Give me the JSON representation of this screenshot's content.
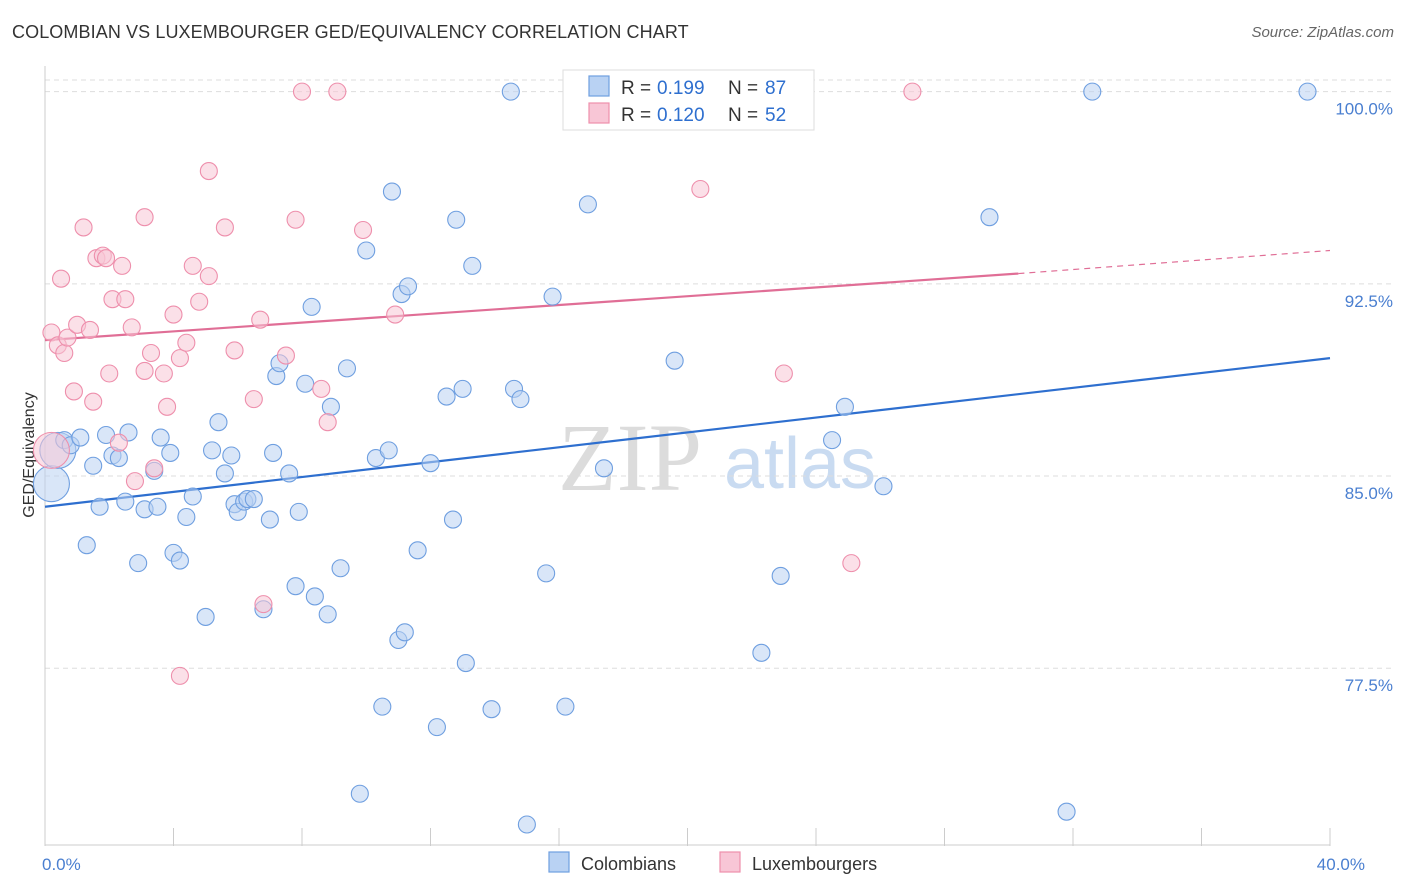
{
  "header": {
    "title": "COLOMBIAN VS LUXEMBOURGER GED/EQUIVALENCY CORRELATION CHART",
    "source": "Source: ZipAtlas.com"
  },
  "watermark": {
    "zip": "ZIP",
    "atlas": "atlas"
  },
  "chart_data": {
    "type": "scatter",
    "title": "COLOMBIAN VS LUXEMBOURGER GED/EQUIVALENCY CORRELATION CHART",
    "xlabel": "",
    "ylabel": "GED/Equivalency",
    "xlim": [
      0,
      40
    ],
    "ylim": [
      70.6,
      101.0
    ],
    "x_tick_labels": [
      {
        "value": 0,
        "label": "0.0%"
      },
      {
        "value": 40,
        "label": "40.0%"
      }
    ],
    "y_ticks": [
      {
        "value": 100.0,
        "label": "100.0%"
      },
      {
        "value": 92.5,
        "label": "92.5%"
      },
      {
        "value": 85.0,
        "label": "85.0%"
      },
      {
        "value": 77.5,
        "label": "77.5%"
      }
    ],
    "grid": "horizontal dashed",
    "legend": {
      "placement": "top-center",
      "entries": [
        {
          "series": "Colombians",
          "r_label": "R =",
          "r_value": "0.199",
          "n_label": "N =",
          "n_value": "87"
        },
        {
          "series": "Luxembourgers",
          "r_label": "R =",
          "r_value": "0.120",
          "n_label": "N =",
          "n_value": "52"
        }
      ]
    },
    "series": [
      {
        "name": "Colombians",
        "color": "#6f9fe0",
        "fill": "#b9d2f3",
        "trend": {
          "x0": 0,
          "y0": 83.8,
          "x1": 40,
          "y1": 89.6,
          "color": "#2e6fcf"
        },
        "points": [
          {
            "x": 0.2,
            "y": 84.7,
            "big": true
          },
          {
            "x": 0.4,
            "y": 86.0,
            "big": true
          },
          {
            "x": 0.6,
            "y": 86.4
          },
          {
            "x": 0.8,
            "y": 86.2
          },
          {
            "x": 1.1,
            "y": 86.5
          },
          {
            "x": 1.3,
            "y": 82.3
          },
          {
            "x": 1.5,
            "y": 85.4
          },
          {
            "x": 1.7,
            "y": 83.8
          },
          {
            "x": 1.9,
            "y": 86.6
          },
          {
            "x": 2.1,
            "y": 85.8
          },
          {
            "x": 2.3,
            "y": 85.7
          },
          {
            "x": 2.5,
            "y": 84.0
          },
          {
            "x": 2.6,
            "y": 86.7
          },
          {
            "x": 2.9,
            "y": 81.6
          },
          {
            "x": 3.1,
            "y": 83.7
          },
          {
            "x": 3.4,
            "y": 85.2
          },
          {
            "x": 3.5,
            "y": 83.8
          },
          {
            "x": 3.6,
            "y": 86.5
          },
          {
            "x": 3.9,
            "y": 85.9
          },
          {
            "x": 4.0,
            "y": 82.0
          },
          {
            "x": 4.2,
            "y": 81.7
          },
          {
            "x": 4.4,
            "y": 83.4
          },
          {
            "x": 4.6,
            "y": 84.2
          },
          {
            "x": 5.0,
            "y": 79.5
          },
          {
            "x": 5.2,
            "y": 86.0
          },
          {
            "x": 5.4,
            "y": 87.1
          },
          {
            "x": 5.6,
            "y": 85.1
          },
          {
            "x": 5.8,
            "y": 85.8
          },
          {
            "x": 5.9,
            "y": 83.9
          },
          {
            "x": 6.0,
            "y": 83.6
          },
          {
            "x": 6.2,
            "y": 84.0
          },
          {
            "x": 6.3,
            "y": 84.1
          },
          {
            "x": 6.5,
            "y": 84.1
          },
          {
            "x": 6.8,
            "y": 79.8
          },
          {
            "x": 7.0,
            "y": 83.3
          },
          {
            "x": 7.1,
            "y": 85.9
          },
          {
            "x": 7.2,
            "y": 88.9
          },
          {
            "x": 7.3,
            "y": 89.4
          },
          {
            "x": 7.6,
            "y": 85.1
          },
          {
            "x": 7.8,
            "y": 80.7
          },
          {
            "x": 7.9,
            "y": 83.6
          },
          {
            "x": 8.1,
            "y": 88.6
          },
          {
            "x": 8.3,
            "y": 91.6
          },
          {
            "x": 8.4,
            "y": 80.3
          },
          {
            "x": 8.8,
            "y": 79.6
          },
          {
            "x": 8.9,
            "y": 87.7
          },
          {
            "x": 9.2,
            "y": 81.4
          },
          {
            "x": 9.4,
            "y": 89.2
          },
          {
            "x": 9.8,
            "y": 72.6
          },
          {
            "x": 10.0,
            "y": 93.8
          },
          {
            "x": 10.3,
            "y": 85.7
          },
          {
            "x": 10.5,
            "y": 76.0
          },
          {
            "x": 10.7,
            "y": 86.0
          },
          {
            "x": 10.8,
            "y": 96.1
          },
          {
            "x": 11.0,
            "y": 78.6
          },
          {
            "x": 11.1,
            "y": 92.1
          },
          {
            "x": 11.2,
            "y": 78.9
          },
          {
            "x": 11.3,
            "y": 92.4
          },
          {
            "x": 11.6,
            "y": 82.1
          },
          {
            "x": 12.0,
            "y": 85.5
          },
          {
            "x": 12.2,
            "y": 75.2
          },
          {
            "x": 12.5,
            "y": 88.1
          },
          {
            "x": 12.7,
            "y": 83.3
          },
          {
            "x": 12.8,
            "y": 95.0
          },
          {
            "x": 13.0,
            "y": 88.4
          },
          {
            "x": 13.1,
            "y": 77.7
          },
          {
            "x": 13.3,
            "y": 93.2
          },
          {
            "x": 13.9,
            "y": 75.9
          },
          {
            "x": 14.5,
            "y": 100.0
          },
          {
            "x": 14.6,
            "y": 88.4
          },
          {
            "x": 14.8,
            "y": 88.0
          },
          {
            "x": 15.0,
            "y": 71.4
          },
          {
            "x": 15.6,
            "y": 81.2
          },
          {
            "x": 15.8,
            "y": 92.0
          },
          {
            "x": 16.2,
            "y": 76.0
          },
          {
            "x": 16.9,
            "y": 95.6
          },
          {
            "x": 17.4,
            "y": 85.3
          },
          {
            "x": 19.6,
            "y": 89.5
          },
          {
            "x": 22.3,
            "y": 78.1
          },
          {
            "x": 22.9,
            "y": 81.1
          },
          {
            "x": 24.5,
            "y": 86.4
          },
          {
            "x": 24.9,
            "y": 87.7
          },
          {
            "x": 26.1,
            "y": 84.6
          },
          {
            "x": 29.4,
            "y": 95.1
          },
          {
            "x": 31.8,
            "y": 71.9
          },
          {
            "x": 32.6,
            "y": 100.0
          },
          {
            "x": 39.3,
            "y": 100.0
          }
        ]
      },
      {
        "name": "Luxembourgers",
        "color": "#ee8fac",
        "fill": "#f8c6d6",
        "trend": {
          "x0": 0,
          "y0": 90.3,
          "x1": 30.3,
          "y1": 92.9,
          "dash_x1": 40,
          "dash_y1": 93.8,
          "color": "#e06e96"
        },
        "points": [
          {
            "x": 0.2,
            "y": 86.0,
            "big": true
          },
          {
            "x": 0.2,
            "y": 90.6
          },
          {
            "x": 0.4,
            "y": 90.1
          },
          {
            "x": 0.5,
            "y": 92.7
          },
          {
            "x": 0.6,
            "y": 89.8
          },
          {
            "x": 0.7,
            "y": 90.4
          },
          {
            "x": 0.9,
            "y": 88.3
          },
          {
            "x": 1.0,
            "y": 90.9
          },
          {
            "x": 1.2,
            "y": 94.7
          },
          {
            "x": 1.4,
            "y": 90.7
          },
          {
            "x": 1.5,
            "y": 87.9
          },
          {
            "x": 1.6,
            "y": 93.5
          },
          {
            "x": 1.8,
            "y": 93.6
          },
          {
            "x": 1.9,
            "y": 93.5
          },
          {
            "x": 2.0,
            "y": 89.0
          },
          {
            "x": 2.1,
            "y": 91.9
          },
          {
            "x": 2.3,
            "y": 86.3
          },
          {
            "x": 2.4,
            "y": 93.2
          },
          {
            "x": 2.5,
            "y": 91.9
          },
          {
            "x": 2.7,
            "y": 90.8
          },
          {
            "x": 2.8,
            "y": 84.8
          },
          {
            "x": 3.1,
            "y": 95.1
          },
          {
            "x": 3.1,
            "y": 89.1
          },
          {
            "x": 3.3,
            "y": 89.8
          },
          {
            "x": 3.4,
            "y": 85.3
          },
          {
            "x": 3.7,
            "y": 89.0
          },
          {
            "x": 3.8,
            "y": 87.7
          },
          {
            "x": 4.0,
            "y": 91.3
          },
          {
            "x": 4.2,
            "y": 77.2
          },
          {
            "x": 4.2,
            "y": 89.6
          },
          {
            "x": 4.4,
            "y": 90.2
          },
          {
            "x": 4.6,
            "y": 93.2
          },
          {
            "x": 4.8,
            "y": 91.8
          },
          {
            "x": 5.1,
            "y": 96.9
          },
          {
            "x": 5.1,
            "y": 92.8
          },
          {
            "x": 5.6,
            "y": 94.7
          },
          {
            "x": 5.9,
            "y": 89.9
          },
          {
            "x": 6.5,
            "y": 88.0
          },
          {
            "x": 6.7,
            "y": 91.1
          },
          {
            "x": 6.8,
            "y": 80.0
          },
          {
            "x": 7.5,
            "y": 89.7
          },
          {
            "x": 7.8,
            "y": 95.0
          },
          {
            "x": 8.0,
            "y": 100.0
          },
          {
            "x": 8.6,
            "y": 88.4
          },
          {
            "x": 8.8,
            "y": 87.1
          },
          {
            "x": 9.1,
            "y": 100.0
          },
          {
            "x": 9.9,
            "y": 94.6
          },
          {
            "x": 10.9,
            "y": 91.3
          },
          {
            "x": 20.4,
            "y": 96.2
          },
          {
            "x": 23.0,
            "y": 89.0
          },
          {
            "x": 25.1,
            "y": 81.6
          },
          {
            "x": 27.0,
            "y": 100.0
          }
        ]
      }
    ]
  }
}
